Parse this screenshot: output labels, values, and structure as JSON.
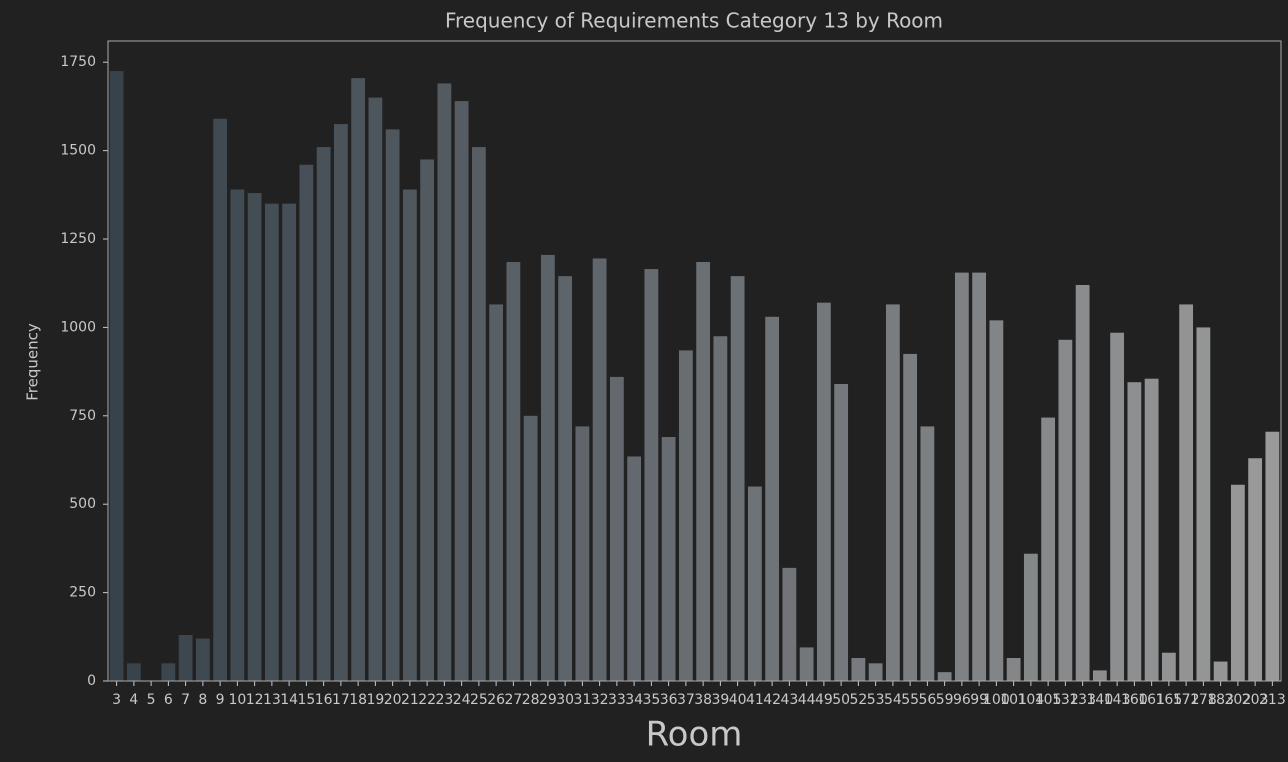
{
  "chart_data": {
    "type": "bar",
    "title": "Frequency of Requirements Category 13 by Room",
    "x_label": "Room",
    "y_label": "Frequency",
    "categories": [
      "3",
      "4",
      "5",
      "6",
      "7",
      "8",
      "9",
      "10",
      "12",
      "13",
      "14",
      "15",
      "16",
      "17",
      "18",
      "19",
      "20",
      "21",
      "22",
      "23",
      "24",
      "25",
      "26",
      "27",
      "28",
      "29",
      "30",
      "31",
      "32",
      "33",
      "34",
      "35",
      "36",
      "37",
      "38",
      "39",
      "40",
      "41",
      "42",
      "43",
      "44",
      "49",
      "50",
      "52",
      "53",
      "54",
      "55",
      "56",
      "59",
      "96",
      "99",
      "100",
      "101",
      "104",
      "105",
      "132",
      "133",
      "140",
      "143",
      "160",
      "161",
      "165",
      "172",
      "178",
      "183",
      "202",
      "203",
      "213"
    ],
    "values": [
      1725,
      50,
      0,
      50,
      130,
      120,
      1590,
      1390,
      1380,
      1350,
      1350,
      1460,
      1510,
      1575,
      1705,
      1650,
      1560,
      1390,
      1475,
      1690,
      1640,
      1510,
      1065,
      1185,
      750,
      1205,
      1145,
      720,
      1195,
      860,
      635,
      1165,
      690,
      935,
      1185,
      975,
      1145,
      550,
      1030,
      320,
      95,
      1070,
      840,
      65,
      50,
      1065,
      925,
      720,
      25,
      1155,
      1155,
      1020,
      65,
      360,
      745,
      965,
      1120,
      30,
      985,
      845,
      855,
      80,
      1065,
      1000,
      55,
      555,
      630,
      705
    ],
    "colors": [
      "#37424b",
      "#9a9a9a"
    ],
    "ylim": [
      0,
      1810
    ],
    "yticks": [
      0,
      250,
      500,
      750,
      1000,
      1250,
      1500,
      1750
    ]
  }
}
